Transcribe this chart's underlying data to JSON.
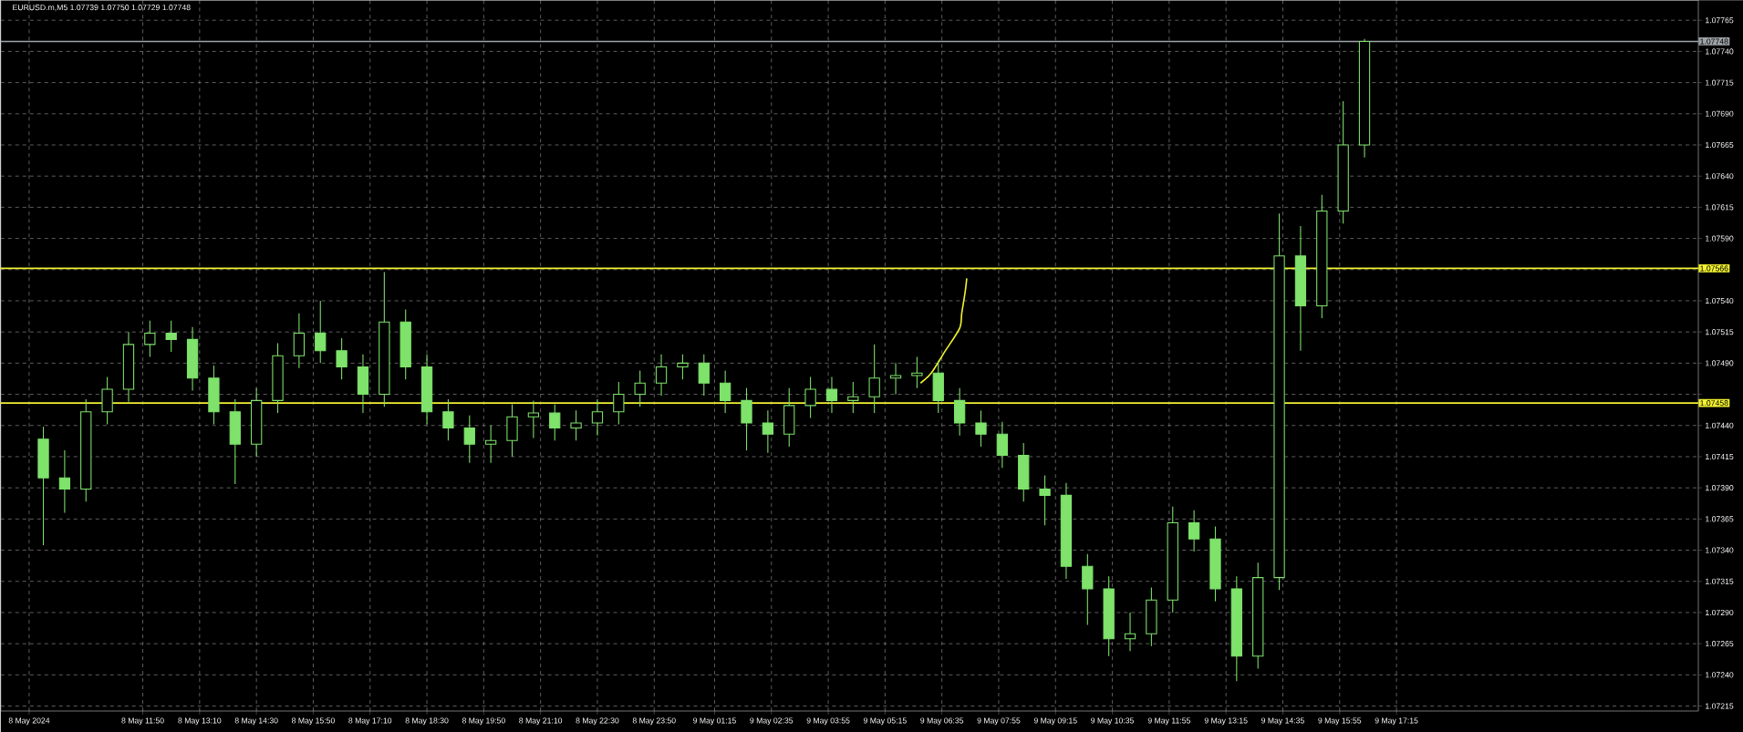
{
  "chart_data": {
    "type": "candlestick",
    "title": "EURUSD.m,M5  1.07739 1.07750 1.07729 1.07748",
    "color": "#7ee26b",
    "grid": true,
    "x": [
      "2024-05-08T09:30",
      "2024-05-08T10:00",
      "2024-05-08T10:30",
      "2024-05-08T11:00",
      "2024-05-08T11:30",
      "2024-05-08T12:00",
      "2024-05-08T12:30",
      "2024-05-08T13:00",
      "2024-05-08T13:30",
      "2024-05-08T14:00",
      "2024-05-08T14:30",
      "2024-05-08T15:00",
      "2024-05-08T15:30",
      "2024-05-08T16:00",
      "2024-05-08T16:30",
      "2024-05-08T17:00",
      "2024-05-08T17:30",
      "2024-05-08T18:00",
      "2024-05-08T18:30",
      "2024-05-08T19:00",
      "2024-05-08T19:30",
      "2024-05-08T20:00",
      "2024-05-08T20:30",
      "2024-05-08T21:00",
      "2024-05-08T21:30",
      "2024-05-08T22:00",
      "2024-05-08T22:30",
      "2024-05-08T23:00",
      "2024-05-08T23:30",
      "2024-05-09T00:00",
      "2024-05-09T00:30",
      "2024-05-09T01:00",
      "2024-05-09T01:30",
      "2024-05-09T02:00",
      "2024-05-09T02:30",
      "2024-05-09T03:00",
      "2024-05-09T03:30",
      "2024-05-09T04:00",
      "2024-05-09T04:30",
      "2024-05-09T05:00",
      "2024-05-09T05:30",
      "2024-05-09T06:00",
      "2024-05-09T06:30",
      "2024-05-09T07:00",
      "2024-05-09T07:30",
      "2024-05-09T08:00",
      "2024-05-09T08:30",
      "2024-05-09T09:00",
      "2024-05-09T09:30",
      "2024-05-09T10:00",
      "2024-05-09T10:30",
      "2024-05-09T11:00",
      "2024-05-09T11:30",
      "2024-05-09T12:00",
      "2024-05-09T12:30",
      "2024-05-09T13:00",
      "2024-05-09T13:30",
      "2024-05-09T14:00",
      "2024-05-09T14:30",
      "2024-05-09T15:00",
      "2024-05-09T15:30",
      "2024-05-09T16:00",
      "2024-05-09T16:30"
    ],
    "ohlc": [
      [
        1.07429,
        1.07439,
        1.07344,
        1.07398
      ],
      [
        1.07398,
        1.0742,
        1.0737,
        1.07389
      ],
      [
        1.07389,
        1.07461,
        1.07379,
        1.07451
      ],
      [
        1.07451,
        1.07479,
        1.07441,
        1.07469
      ],
      [
        1.07469,
        1.07515,
        1.07459,
        1.07505
      ],
      [
        1.07505,
        1.07524,
        1.07495,
        1.07514
      ],
      [
        1.07514,
        1.07524,
        1.07499,
        1.07509
      ],
      [
        1.07509,
        1.07519,
        1.07468,
        1.07478
      ],
      [
        1.07478,
        1.07488,
        1.07441,
        1.07451
      ],
      [
        1.07451,
        1.07461,
        1.07393,
        1.07425
      ],
      [
        1.07425,
        1.0747,
        1.07415,
        1.0746
      ],
      [
        1.0746,
        1.07506,
        1.0745,
        1.07496
      ],
      [
        1.07496,
        1.0753,
        1.07486,
        1.07514
      ],
      [
        1.07514,
        1.0754,
        1.0749,
        1.075
      ],
      [
        1.075,
        1.0751,
        1.07477,
        1.07487
      ],
      [
        1.07487,
        1.07497,
        1.0745,
        1.07465
      ],
      [
        1.07465,
        1.07563,
        1.07455,
        1.07523
      ],
      [
        1.07523,
        1.07533,
        1.07477,
        1.07487
      ],
      [
        1.07487,
        1.07497,
        1.07441,
        1.07451
      ],
      [
        1.07451,
        1.07461,
        1.07428,
        1.07438
      ],
      [
        1.07438,
        1.07448,
        1.0741,
        1.07425
      ],
      [
        1.07425,
        1.0744,
        1.0741,
        1.07428
      ],
      [
        1.07428,
        1.07457,
        1.07415,
        1.07447
      ],
      [
        1.07447,
        1.0746,
        1.0743,
        1.0745
      ],
      [
        1.0745,
        1.07457,
        1.07428,
        1.07438
      ],
      [
        1.07438,
        1.07452,
        1.07428,
        1.07442
      ],
      [
        1.07442,
        1.07461,
        1.07432,
        1.07451
      ],
      [
        1.07451,
        1.07475,
        1.07441,
        1.07465
      ],
      [
        1.07465,
        1.07484,
        1.07455,
        1.07474
      ],
      [
        1.07474,
        1.07497,
        1.07464,
        1.07487
      ],
      [
        1.07487,
        1.07497,
        1.07477,
        1.0749
      ],
      [
        1.0749,
        1.07497,
        1.07464,
        1.07474
      ],
      [
        1.07474,
        1.07484,
        1.0745,
        1.0746
      ],
      [
        1.0746,
        1.0747,
        1.0742,
        1.07442
      ],
      [
        1.07442,
        1.07452,
        1.07418,
        1.07433
      ],
      [
        1.07433,
        1.0747,
        1.07423,
        1.07456
      ],
      [
        1.07456,
        1.07479,
        1.07446,
        1.07469
      ],
      [
        1.07469,
        1.07479,
        1.0745,
        1.0746
      ],
      [
        1.0746,
        1.07475,
        1.0745,
        1.07463
      ],
      [
        1.07463,
        1.07505,
        1.0745,
        1.07478
      ],
      [
        1.07478,
        1.0749,
        1.07465,
        1.0748
      ],
      [
        1.0748,
        1.07495,
        1.0747,
        1.07482
      ],
      [
        1.07482,
        1.07492,
        1.0745,
        1.0746
      ],
      [
        1.0746,
        1.0747,
        1.07432,
        1.07442
      ],
      [
        1.07442,
        1.07452,
        1.07423,
        1.07433
      ],
      [
        1.07433,
        1.07443,
        1.07406,
        1.07416
      ],
      [
        1.07416,
        1.07426,
        1.07379,
        1.07389
      ],
      [
        1.07389,
        1.074,
        1.0736,
        1.07384
      ],
      [
        1.07384,
        1.07394,
        1.07317,
        1.07327
      ],
      [
        1.07327,
        1.07337,
        1.0728,
        1.07309
      ],
      [
        1.07309,
        1.07319,
        1.07255,
        1.07269
      ],
      [
        1.07269,
        1.0729,
        1.07259,
        1.07273
      ],
      [
        1.07273,
        1.0731,
        1.07263,
        1.073
      ],
      [
        1.073,
        1.07375,
        1.0729,
        1.07362
      ],
      [
        1.07362,
        1.07372,
        1.07339,
        1.07349
      ],
      [
        1.07349,
        1.07359,
        1.07299,
        1.07309
      ],
      [
        1.07309,
        1.07319,
        1.07235,
        1.07255
      ],
      [
        1.07255,
        1.0733,
        1.07245,
        1.07318
      ],
      [
        1.07318,
        1.0761,
        1.07308,
        1.07576
      ],
      [
        1.07576,
        1.076,
        1.075,
        1.07536
      ],
      [
        1.07536,
        1.07625,
        1.07526,
        1.07612
      ],
      [
        1.07612,
        1.077,
        1.07602,
        1.07665
      ],
      [
        1.07665,
        1.0775,
        1.07655,
        1.07748
      ]
    ],
    "series": [
      {
        "type": "line",
        "color": "#f2f230",
        "x": [
          "2024-05-09T06:05",
          "2024-05-09T06:20",
          "2024-05-09T06:40",
          "2024-05-09T07:00",
          "2024-05-09T07:03",
          "2024-05-09T07:08",
          "2024-05-09T07:10"
        ],
        "values": [
          1.07474,
          1.07482,
          1.075,
          1.07518,
          1.0753,
          1.07548,
          1.07558
        ]
      }
    ],
    "ref_lines": [
      {
        "axis": "y",
        "value": 1.07566,
        "label": "1.07566",
        "color": "#f2f230"
      },
      {
        "axis": "y",
        "value": 1.07458,
        "label": "1.07458",
        "color": "#f2f230"
      },
      {
        "axis": "y",
        "value": 1.07748,
        "label": "1.07748",
        "color": "#9ea3a8"
      }
    ],
    "xlim": [
      "2024-05-08T08:30",
      "2024-05-10T00:20"
    ],
    "ylim": [
      1.07211,
      1.07781
    ],
    "xticks": [
      {
        "value": "2024-05-08T09:10",
        "label": "8 May 2024"
      },
      {
        "value": "2024-05-08T11:50",
        "label": "8 May 11:50"
      },
      {
        "value": "2024-05-08T13:10",
        "label": "8 May 13:10"
      },
      {
        "value": "2024-05-08T14:30",
        "label": "8 May 14:30"
      },
      {
        "value": "2024-05-08T15:50",
        "label": "8 May 15:50"
      },
      {
        "value": "2024-05-08T17:10",
        "label": "8 May 17:10"
      },
      {
        "value": "2024-05-08T18:30",
        "label": "8 May 18:30"
      },
      {
        "value": "2024-05-08T19:50",
        "label": "8 May 19:50"
      },
      {
        "value": "2024-05-08T21:10",
        "label": "8 May 21:10"
      },
      {
        "value": "2024-05-08T22:30",
        "label": "8 May 22:30"
      },
      {
        "value": "2024-05-08T23:50",
        "label": "8 May 23:50"
      },
      {
        "value": "2024-05-09T01:15",
        "label": "9 May 01:15"
      },
      {
        "value": "2024-05-09T02:35",
        "label": "9 May 02:35"
      },
      {
        "value": "2024-05-09T03:55",
        "label": "9 May 03:55"
      },
      {
        "value": "2024-05-09T05:15",
        "label": "9 May 05:15"
      },
      {
        "value": "2024-05-09T06:35",
        "label": "9 May 06:35"
      },
      {
        "value": "2024-05-09T07:55",
        "label": "9 May 07:55"
      },
      {
        "value": "2024-05-09T09:15",
        "label": "9 May 09:15"
      },
      {
        "value": "2024-05-09T10:35",
        "label": "9 May 10:35"
      },
      {
        "value": "2024-05-09T11:55",
        "label": "9 May 11:55"
      },
      {
        "value": "2024-05-09T13:15",
        "label": "9 May 13:15"
      },
      {
        "value": "2024-05-09T14:35",
        "label": "9 May 14:35"
      },
      {
        "value": "2024-05-09T15:55",
        "label": "9 May 15:55"
      },
      {
        "value": "2024-05-09T17:15",
        "label": "9 May 17:15"
      }
    ],
    "yticks": [
      {
        "value": 1.07215,
        "label": "1.07215"
      },
      {
        "value": 1.0724,
        "label": "1.07240"
      },
      {
        "value": 1.07265,
        "label": "1.07265"
      },
      {
        "value": 1.0729,
        "label": "1.07290"
      },
      {
        "value": 1.07315,
        "label": "1.07315"
      },
      {
        "value": 1.0734,
        "label": "1.07340"
      },
      {
        "value": 1.07365,
        "label": "1.07365"
      },
      {
        "value": 1.0739,
        "label": "1.07390"
      },
      {
        "value": 1.07415,
        "label": "1.07415"
      },
      {
        "value": 1.0744,
        "label": "1.07440"
      },
      {
        "value": 1.07465,
        "label": null
      },
      {
        "value": 1.0749,
        "label": "1.07490"
      },
      {
        "value": 1.07515,
        "label": "1.07515"
      },
      {
        "value": 1.0754,
        "label": "1.07540"
      },
      {
        "value": 1.07565,
        "label": null
      },
      {
        "value": 1.0759,
        "label": "1.07590"
      },
      {
        "value": 1.07615,
        "label": "1.07615"
      },
      {
        "value": 1.0764,
        "label": "1.07640"
      },
      {
        "value": 1.07665,
        "label": "1.07665"
      },
      {
        "value": 1.0769,
        "label": "1.07690"
      },
      {
        "value": 1.07715,
        "label": "1.07715"
      },
      {
        "value": 1.0774,
        "label": "1.07740"
      },
      {
        "value": 1.07765,
        "label": "1.07765"
      }
    ]
  }
}
